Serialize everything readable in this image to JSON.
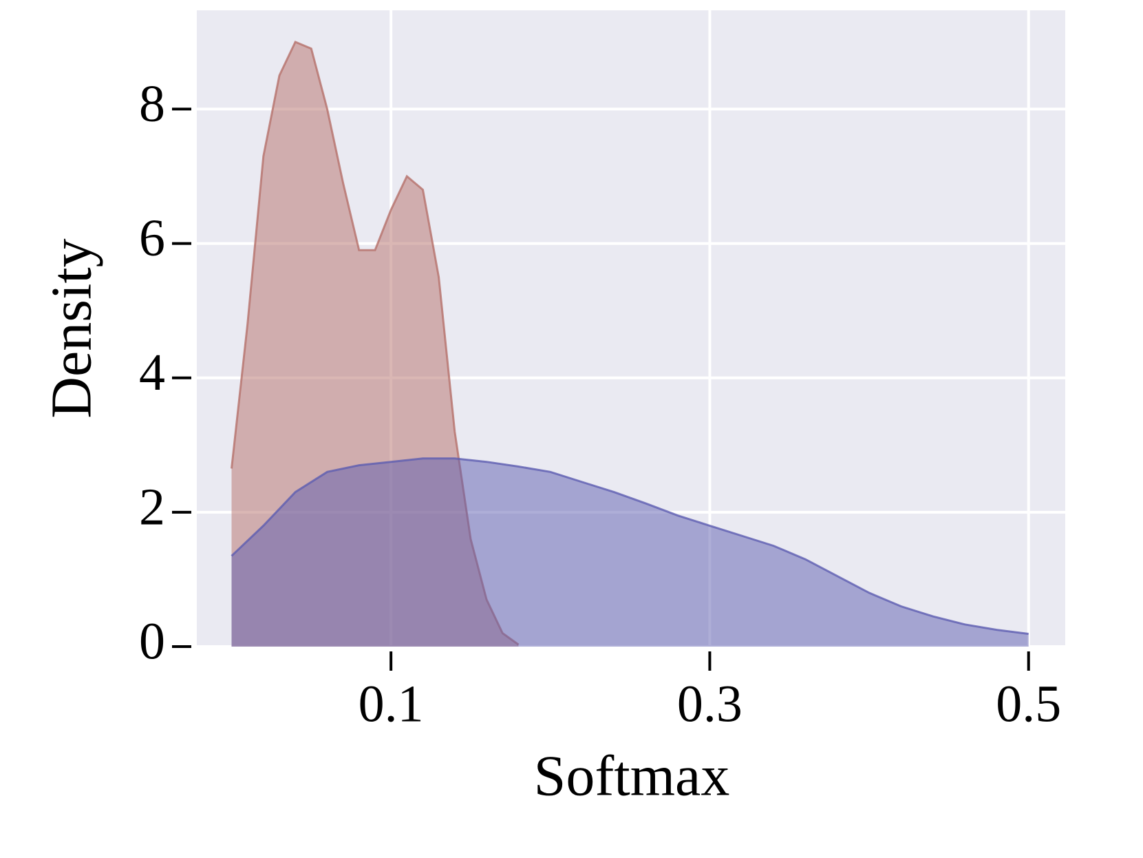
{
  "chart_data": {
    "type": "area",
    "xlabel": "Softmax",
    "ylabel": "Density",
    "series": [
      {
        "color": "#b5706a",
        "x": [
          0,
          0.01,
          0.02,
          0.03,
          0.04,
          0.05,
          0.06,
          0.07,
          0.08,
          0.09,
          0.1,
          0.11,
          0.12,
          0.13,
          0.14,
          0.15,
          0.16,
          0.17,
          0.18
        ],
        "values": [
          2.65,
          4.8,
          7.3,
          8.5,
          9.0,
          8.9,
          8.0,
          6.9,
          5.9,
          5.9,
          6.5,
          7.0,
          6.8,
          5.5,
          3.2,
          1.6,
          0.7,
          0.2,
          0.03
        ]
      },
      {
        "color": "#5d5db0",
        "x": [
          0,
          0.02,
          0.04,
          0.06,
          0.08,
          0.1,
          0.12,
          0.14,
          0.16,
          0.18,
          0.2,
          0.22,
          0.24,
          0.26,
          0.28,
          0.3,
          0.32,
          0.34,
          0.36,
          0.38,
          0.4,
          0.42,
          0.44,
          0.46,
          0.48,
          0.5
        ],
        "values": [
          1.35,
          1.8,
          2.3,
          2.6,
          2.7,
          2.75,
          2.8,
          2.8,
          2.75,
          2.68,
          2.6,
          2.45,
          2.3,
          2.13,
          1.95,
          1.8,
          1.65,
          1.5,
          1.3,
          1.05,
          0.8,
          0.6,
          0.45,
          0.33,
          0.25,
          0.19
        ]
      }
    ],
    "xlim": [
      -0.0218,
      0.523
    ],
    "xticks": [
      0.1,
      0.3,
      0.5
    ],
    "ylim": [
      0,
      9.47
    ],
    "yticks": [
      0,
      2,
      4,
      6,
      8
    ],
    "grid": true
  }
}
